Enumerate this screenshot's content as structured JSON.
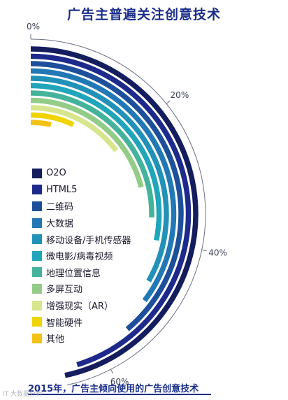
{
  "title": "广告主普遍关注创意技术",
  "caption": "2015年，广告主倾向使用的广告创意技术",
  "watermark": "IT 大数据分析",
  "colors": {
    "title": "#1b2f8a",
    "axis": "#6b7080"
  },
  "chart_data": {
    "type": "radial-bar",
    "title": "广告主普遍关注创意技术",
    "categories": [
      "O2O",
      "HTML5",
      "二维码",
      "大数据",
      "移动设备/手机传感器",
      "微电影/病毒视频",
      "地理位置信息",
      "多屏互动",
      "增强现实（AR）",
      "智能硬件",
      "其他"
    ],
    "values": [
      66,
      64,
      55,
      50,
      47,
      40,
      36,
      30,
      21,
      10,
      5
    ],
    "unit": "%",
    "axis_ticks": [
      "0%",
      "20%",
      "40%",
      "60%"
    ],
    "range": [
      0,
      66
    ],
    "legend_position": "left-center",
    "series_colors": [
      "#141d5e",
      "#1d2a8c",
      "#1d4f9b",
      "#2278b4",
      "#2191b8",
      "#20a5ba",
      "#45b39b",
      "#93cc86",
      "#d7e58c",
      "#efd400",
      "#f3c215"
    ]
  }
}
